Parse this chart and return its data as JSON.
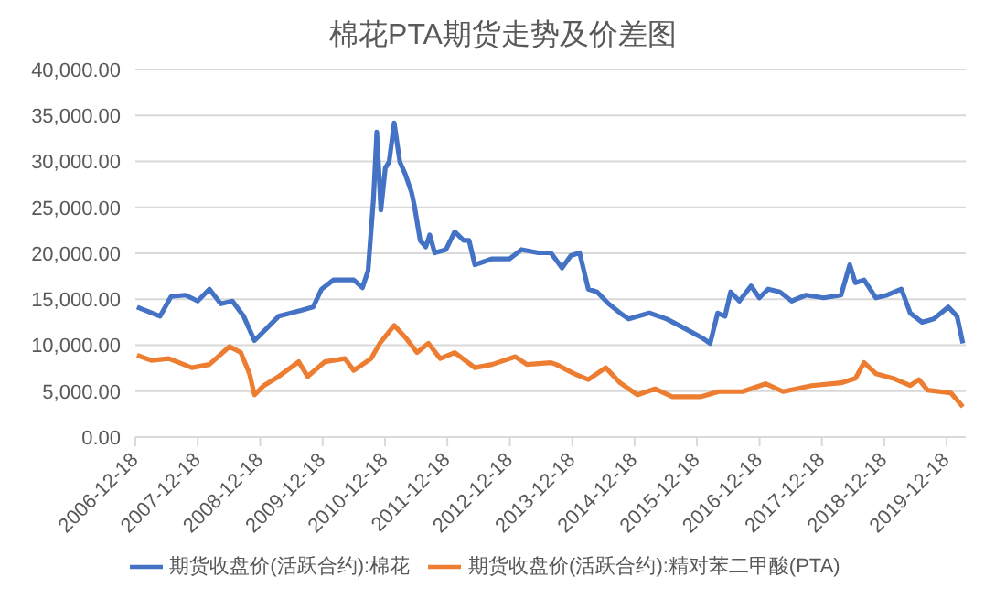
{
  "chart_data": {
    "type": "line",
    "title": "棉花PTA期货走势及价差图",
    "series": [
      {
        "name": "期货收盘价(活跃合约):棉花",
        "color": "#4472c4",
        "x": [
          "2006-12-28",
          "2007-05-12",
          "2007-07-15",
          "2007-10-08",
          "2007-12-18",
          "2008-02-24",
          "2008-05-01",
          "2008-07-08",
          "2008-09-12",
          "2008-11-14",
          "2009-01-26",
          "2009-04-05",
          "2009-08-18",
          "2009-10-23",
          "2009-12-12",
          "2010-02-20",
          "2010-06-18",
          "2010-08-08",
          "2010-09-10",
          "2010-10-12",
          "2010-10-31",
          "2010-11-24",
          "2010-12-20",
          "2011-01-11",
          "2011-02-10",
          "2011-03-15",
          "2011-04-16",
          "2011-05-22",
          "2011-06-07",
          "2011-07-12",
          "2011-08-14",
          "2011-09-06",
          "2011-10-05",
          "2011-12-10",
          "2012-01-30",
          "2012-03-22",
          "2012-04-23",
          "2012-05-27",
          "2012-09-05",
          "2012-12-17",
          "2013-02-24",
          "2013-06-03",
          "2013-08-15",
          "2013-10-19",
          "2013-12-10",
          "2014-01-30",
          "2014-03-22",
          "2014-05-12",
          "2014-07-19",
          "2014-09-24",
          "2014-11-14",
          "2015-03-14",
          "2015-06-24",
          "2015-10-04",
          "2016-01-12",
          "2016-03-04",
          "2016-04-17",
          "2016-05-30",
          "2016-07-02",
          "2016-08-22",
          "2016-10-30",
          "2016-12-17",
          "2017-02-07",
          "2017-04-16",
          "2017-06-24",
          "2017-09-16",
          "2017-12-28",
          "2018-04-09",
          "2018-05-30",
          "2018-07-02",
          "2018-08-22",
          "2018-10-30",
          "2019-01-04",
          "2019-03-28",
          "2019-05-19",
          "2019-07-27",
          "2019-10-04",
          "2019-12-28",
          "2020-02-17",
          "2020-03-22"
        ],
        "values": [
          14150,
          13150,
          15300,
          15450,
          14800,
          16100,
          14500,
          14800,
          13150,
          10500,
          11850,
          13150,
          13800,
          14150,
          16100,
          17100,
          17100,
          16250,
          18100,
          26000,
          33200,
          24700,
          29300,
          29950,
          34200,
          29950,
          28600,
          26650,
          25300,
          21400,
          20700,
          22000,
          20050,
          20400,
          22350,
          21400,
          21400,
          18750,
          19400,
          19400,
          20400,
          20050,
          20050,
          18400,
          19750,
          20050,
          16100,
          15800,
          14500,
          13500,
          12850,
          13500,
          12850,
          11850,
          10850,
          10200,
          13500,
          13150,
          15800,
          14800,
          16450,
          15150,
          16100,
          15800,
          14800,
          15450,
          15150,
          15450,
          18750,
          16800,
          17100,
          15150,
          15450,
          16100,
          13500,
          12500,
          12850,
          14150,
          13150,
          10200
        ]
      },
      {
        "name": "期货收盘价(活跃合约):精对苯二甲酸(PTA)",
        "color": "#ed7d31",
        "x": [
          "2006-12-28",
          "2007-03-22",
          "2007-07-02",
          "2007-11-14",
          "2008-02-24",
          "2008-06-21",
          "2008-08-26",
          "2008-10-16",
          "2008-11-14",
          "2009-01-08",
          "2009-04-05",
          "2009-07-31",
          "2009-09-21",
          "2010-01-01",
          "2010-04-27",
          "2010-06-18",
          "2010-09-28",
          "2010-11-18",
          "2011-02-10",
          "2011-04-16",
          "2011-06-24",
          "2011-08-29",
          "2011-11-06",
          "2012-01-30",
          "2012-05-27",
          "2012-09-05",
          "2013-01-19",
          "2013-03-28",
          "2013-08-15",
          "2013-09-16",
          "2013-12-28",
          "2014-03-22",
          "2014-07-02",
          "2014-09-24",
          "2015-01-04",
          "2015-04-16",
          "2015-07-27",
          "2016-01-12",
          "2016-04-23",
          "2016-09-09",
          "2017-01-23",
          "2017-05-05",
          "2017-10-19",
          "2018-04-09",
          "2018-07-02",
          "2018-08-22",
          "2018-10-30",
          "2019-02-07",
          "2019-05-19",
          "2019-07-09",
          "2019-08-29",
          "2020-01-12",
          "2020-03-22"
        ],
        "values": [
          8900,
          8350,
          8550,
          7550,
          7900,
          9850,
          9200,
          6900,
          4600,
          5600,
          6600,
          8200,
          6600,
          8200,
          8550,
          7250,
          8550,
          10200,
          12150,
          10850,
          9200,
          10200,
          8550,
          9200,
          7550,
          7900,
          8750,
          7900,
          8100,
          7900,
          6900,
          6250,
          7550,
          5900,
          4600,
          5250,
          4400,
          4400,
          4950,
          4950,
          5800,
          4950,
          5600,
          5900,
          6400,
          8100,
          6900,
          6400,
          5600,
          6250,
          5100,
          4800,
          3300
        ]
      }
    ],
    "xlim": [
      "2006-12-18",
      "2020-04-08"
    ],
    "xticks": [
      "2006-12-18",
      "2007-12-18",
      "2008-12-18",
      "2009-12-18",
      "2010-12-18",
      "2011-12-18",
      "2012-12-18",
      "2013-12-18",
      "2014-12-18",
      "2015-12-18",
      "2016-12-18",
      "2017-12-18",
      "2018-12-18",
      "2019-12-18"
    ],
    "ylim": [
      0,
      40000
    ],
    "yticks": [
      {
        "value": 0,
        "label": "0.00"
      },
      {
        "value": 5000,
        "label": "5,000.00"
      },
      {
        "value": 10000,
        "label": "10,000.00"
      },
      {
        "value": 15000,
        "label": "15,000.00"
      },
      {
        "value": 20000,
        "label": "20,000.00"
      },
      {
        "value": 25000,
        "label": "25,000.00"
      },
      {
        "value": 30000,
        "label": "30,000.00"
      },
      {
        "value": 35000,
        "label": "35,000.00"
      },
      {
        "value": 40000,
        "label": "40,000.00"
      }
    ],
    "grid": "y",
    "legend": "bottom",
    "marker": "none",
    "line_style": "solid"
  }
}
